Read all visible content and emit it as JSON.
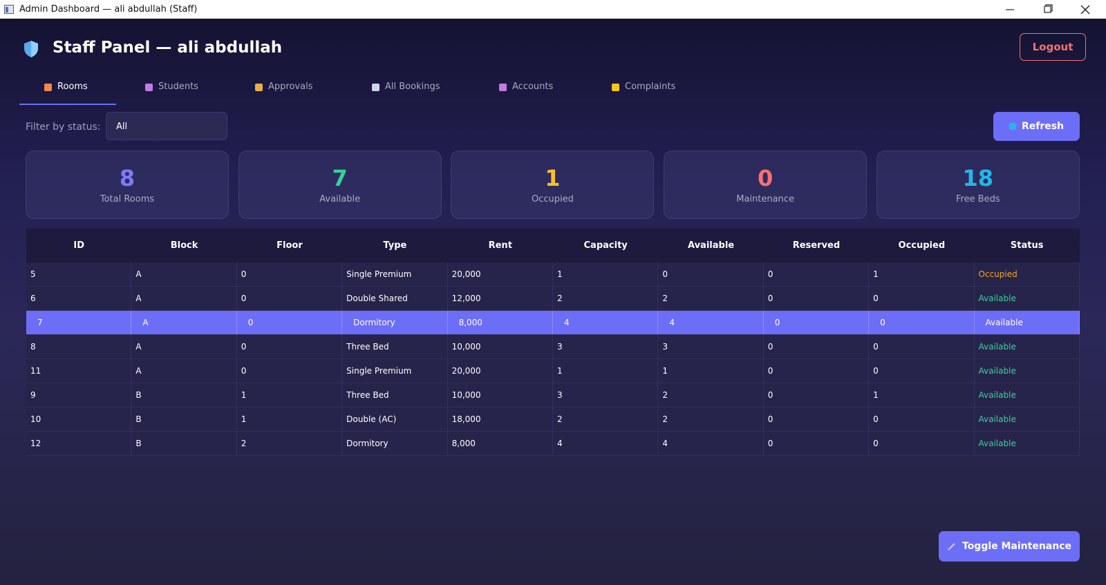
{
  "window": {
    "title": "Admin Dashboard — ali abdullah (Staff)"
  },
  "header": {
    "title": "Staff Panel — ali abdullah",
    "logout": "Logout"
  },
  "tabs": [
    "Rooms",
    "Students",
    "Approvals",
    "All Bookings",
    "Accounts",
    "Complaints"
  ],
  "active_tab": 0,
  "filter": {
    "label": "Filter by status:",
    "value": "All"
  },
  "refresh": "Refresh",
  "stats": [
    {
      "value": 8,
      "label": "Total Rooms",
      "color": "#7c7cf8"
    },
    {
      "value": 7,
      "label": "Available",
      "color": "#34d399"
    },
    {
      "value": 1,
      "label": "Occupied",
      "color": "#fbbf24"
    },
    {
      "value": 0,
      "label": "Maintenance",
      "color": "#f87171"
    },
    {
      "value": 18,
      "label": "Free Beds",
      "color": "#22b8e6"
    }
  ],
  "table": {
    "columns": [
      "ID",
      "Block",
      "Floor",
      "Type",
      "Rent",
      "Capacity",
      "Available",
      "Reserved",
      "Occupied",
      "Status"
    ],
    "rows": [
      [
        "5",
        "A",
        "0",
        "Single Premium",
        "20,000",
        "1",
        "0",
        "0",
        "1",
        "Occupied"
      ],
      [
        "6",
        "A",
        "0",
        "Double Shared",
        "12,000",
        "2",
        "2",
        "0",
        "0",
        "Available"
      ],
      [
        "7",
        "A",
        "0",
        "Dormitory",
        "8,000",
        "4",
        "4",
        "0",
        "0",
        "Available"
      ],
      [
        "8",
        "A",
        "0",
        "Three Bed",
        "10,000",
        "3",
        "3",
        "0",
        "0",
        "Available"
      ],
      [
        "11",
        "A",
        "0",
        "Single Premium",
        "20,000",
        "1",
        "1",
        "0",
        "0",
        "Available"
      ],
      [
        "9",
        "B",
        "1",
        "Three Bed",
        "10,000",
        "3",
        "2",
        "0",
        "1",
        "Available"
      ],
      [
        "10",
        "B",
        "1",
        "Double (AC)",
        "18,000",
        "2",
        "2",
        "0",
        "0",
        "Available"
      ],
      [
        "12",
        "B",
        "2",
        "Dormitory",
        "8,000",
        "4",
        "4",
        "0",
        "0",
        "Available"
      ]
    ],
    "selected_row": 2,
    "status_colors": {
      "Occupied": "#f5a524",
      "Available": "#34d399"
    }
  },
  "toggle": "Toggle Maintenance"
}
